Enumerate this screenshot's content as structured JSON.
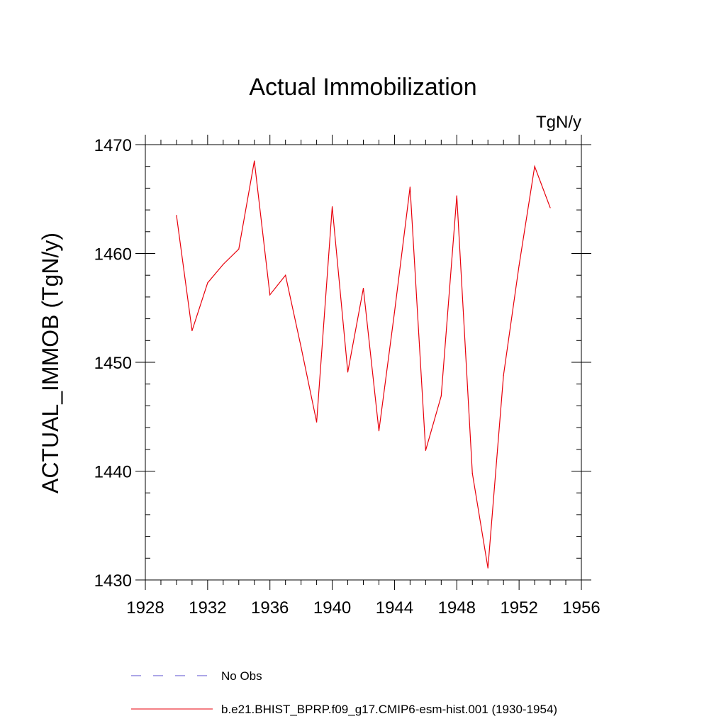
{
  "chart_data": {
    "type": "line",
    "title": "Actual Immobilization",
    "units_label": "TgN/y",
    "ylabel": "ACTUAL_IMMOB  (TgN/y)",
    "xlabel": "",
    "xlim": [
      1928,
      1956
    ],
    "ylim": [
      1430,
      1470
    ],
    "x_ticks": [
      1928,
      1932,
      1936,
      1940,
      1944,
      1948,
      1952,
      1956
    ],
    "y_ticks": [
      1430,
      1440,
      1450,
      1460,
      1470
    ],
    "grid": false,
    "legend_position": "bottom",
    "series": [
      {
        "name": "b.e21.BHIST_BPRP.f09_g17.CMIP6-esm-hist.001 (1930-1954)",
        "color": "#e8000b",
        "style": "solid",
        "x": [
          1930,
          1931,
          1932,
          1933,
          1934,
          1935,
          1936,
          1937,
          1938,
          1939,
          1940,
          1941,
          1942,
          1943,
          1944,
          1945,
          1946,
          1947,
          1948,
          1949,
          1950,
          1951,
          1952,
          1953,
          1954
        ],
        "values": [
          1463.5,
          1452.9,
          1457.3,
          1459.0,
          1460.4,
          1468.5,
          1456.2,
          1458.0,
          1451.4,
          1444.5,
          1464.3,
          1449.1,
          1456.8,
          1443.7,
          1454.6,
          1466.1,
          1441.9,
          1446.9,
          1465.3,
          1439.8,
          1431.1,
          1448.8,
          1458.9,
          1468.0,
          1464.2
        ]
      }
    ],
    "legend": [
      {
        "label": "No Obs",
        "color": "#5a4fcf",
        "style": "dashed"
      },
      {
        "label": "b.e21.BHIST_BPRP.f09_g17.CMIP6-esm-hist.001 (1930-1954)",
        "color": "#e8000b",
        "style": "solid"
      }
    ]
  }
}
